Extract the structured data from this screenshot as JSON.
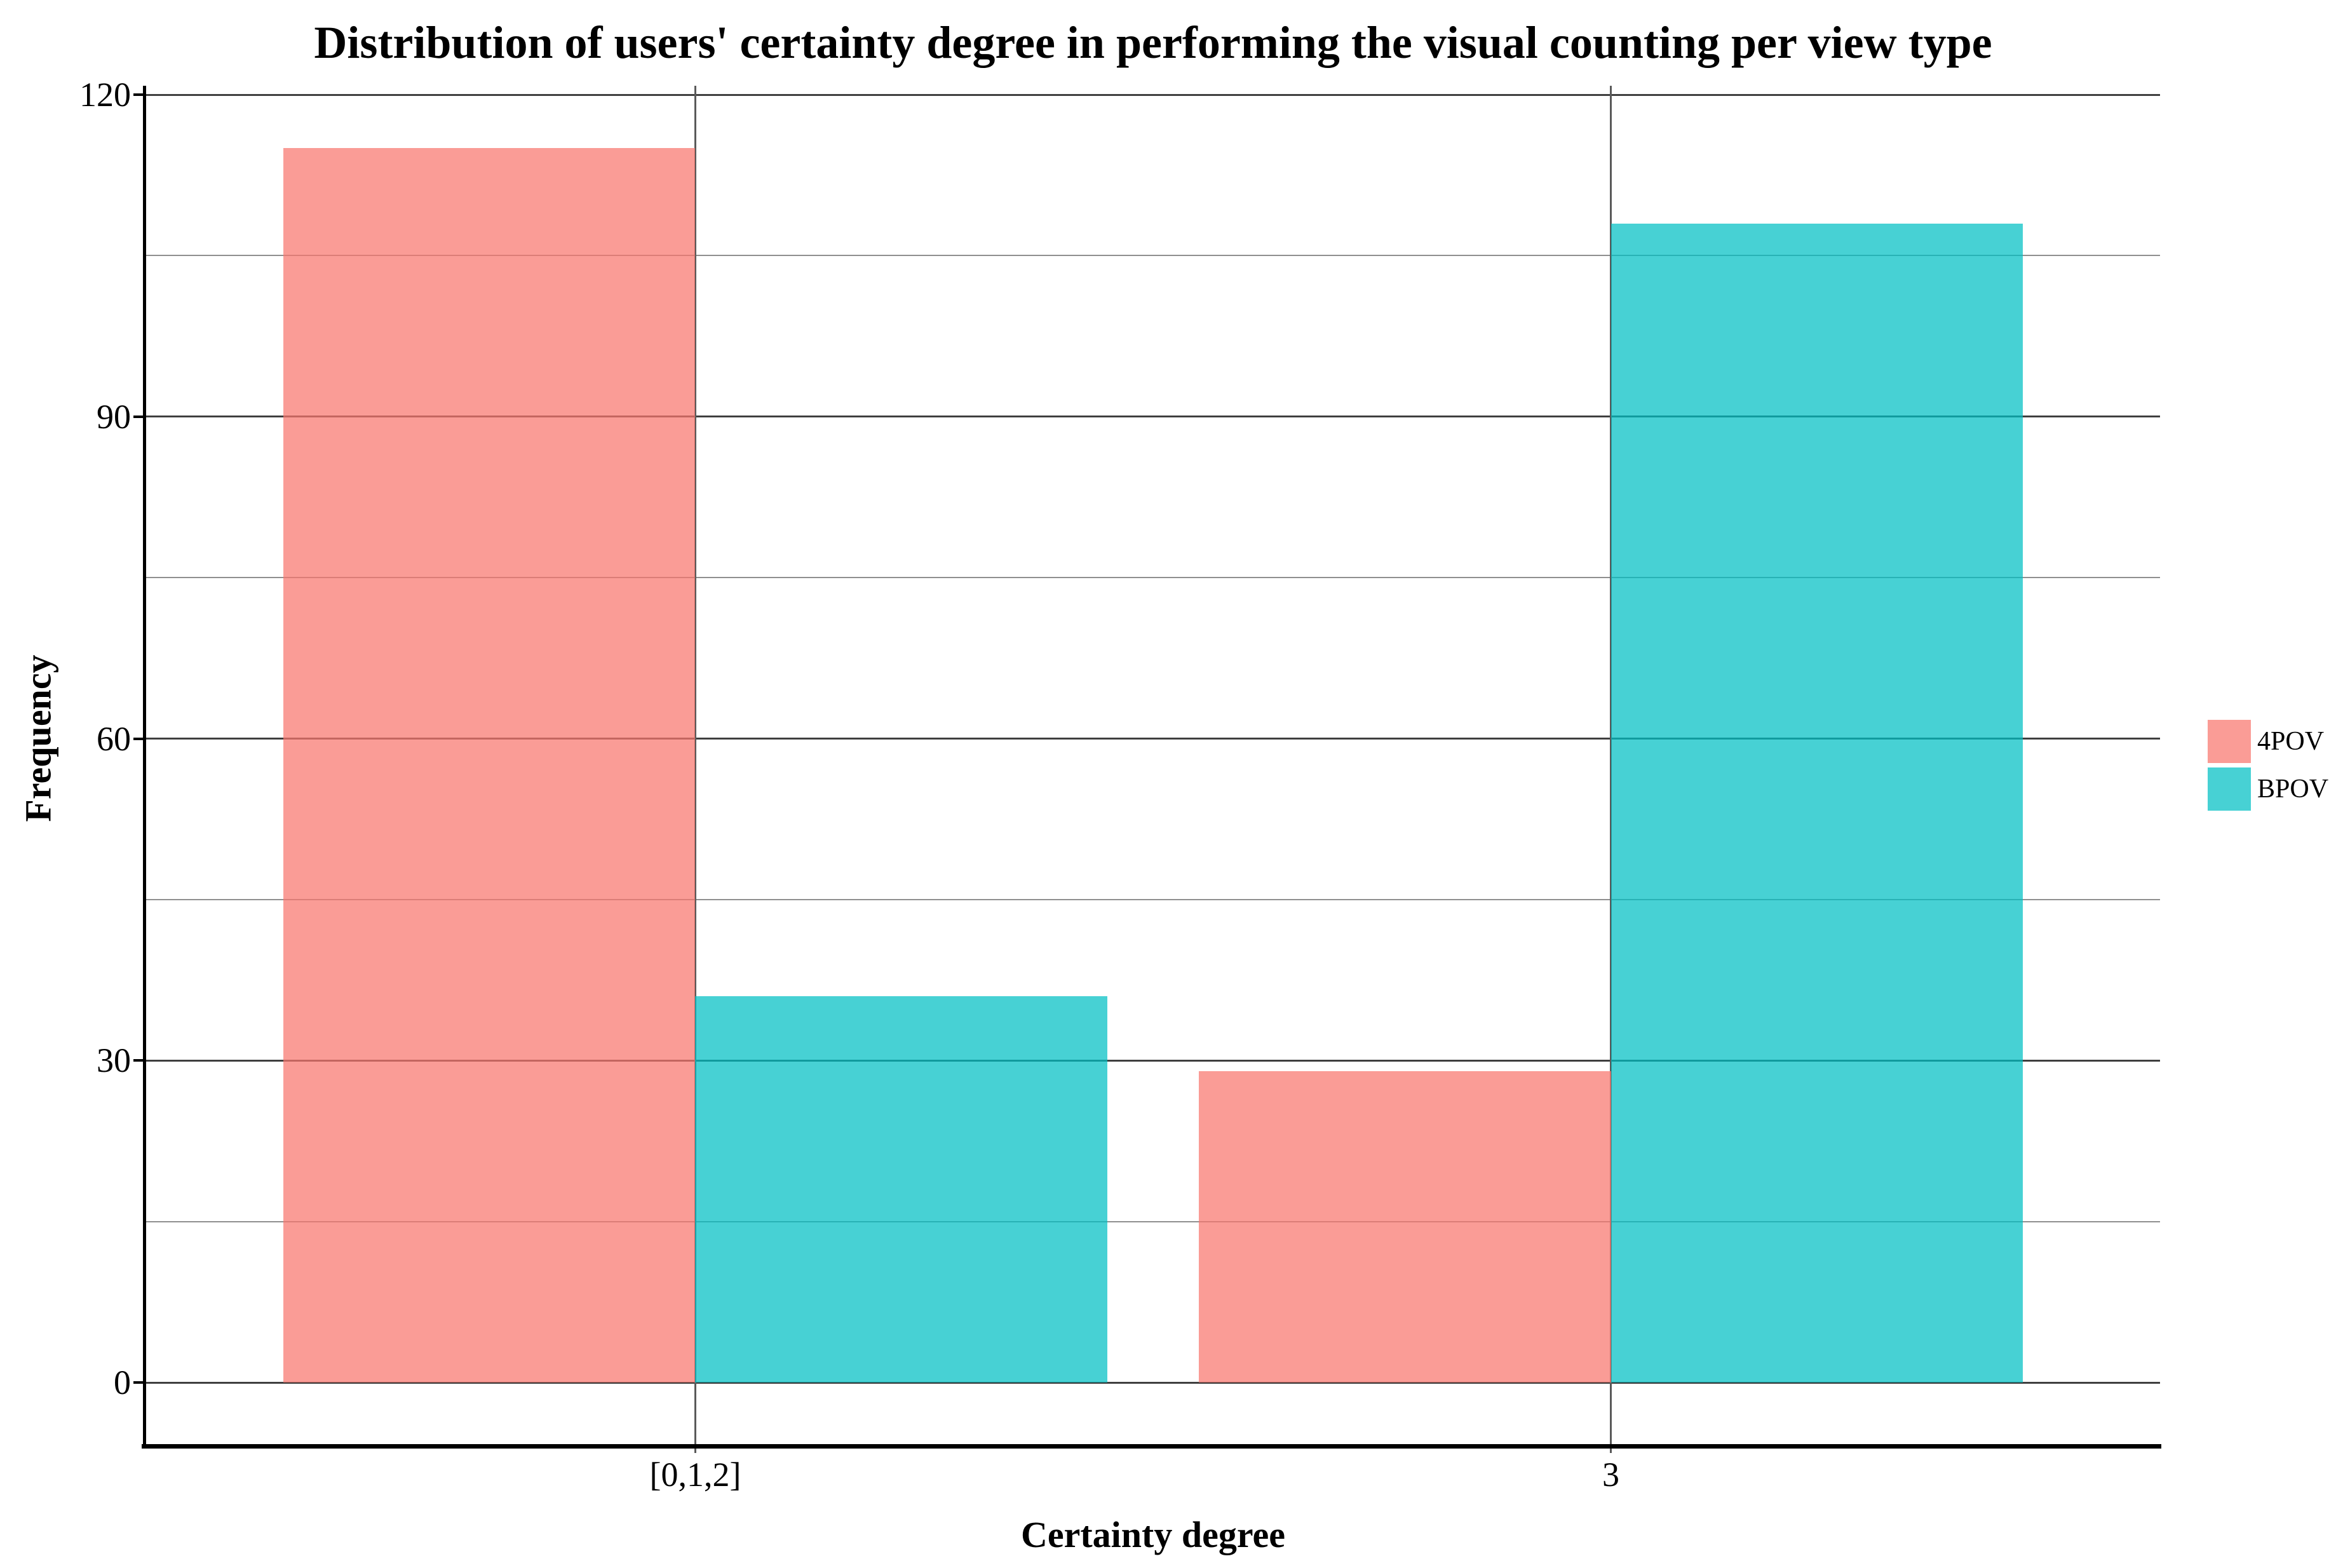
{
  "title": "Distribution of users' certainty degree in performing the visual counting per view type",
  "chart_data": {
    "type": "bar",
    "grouped": true,
    "title": "Distribution of users' certainty degree in performing the visual counting per view type",
    "xlabel": "Certainty degree",
    "ylabel": "Frequency",
    "categories": [
      "[0,1,2]",
      "3"
    ],
    "series": [
      {
        "name": "4POV",
        "color": "#F8766D",
        "values": [
          115,
          29
        ]
      },
      {
        "name": "BPOV",
        "color": "#00BFC4",
        "values": [
          36,
          108
        ]
      }
    ],
    "bar_alpha": 0.72,
    "ylim": [
      0,
      120
    ],
    "yticks_major": [
      0,
      30,
      60,
      90,
      120
    ],
    "yticks_minor": [
      15,
      45,
      75,
      105
    ],
    "grid": "horizontal major and minor gridlines, vertical gridline at each category center",
    "legend_position": "right"
  },
  "style_colors": {
    "background": "#ffffff",
    "axis": "#000000",
    "gridline_major": "#3f3f3f",
    "gridline_minor": "#8f8f8f",
    "gridline_vertical": "#5a5a5a"
  }
}
